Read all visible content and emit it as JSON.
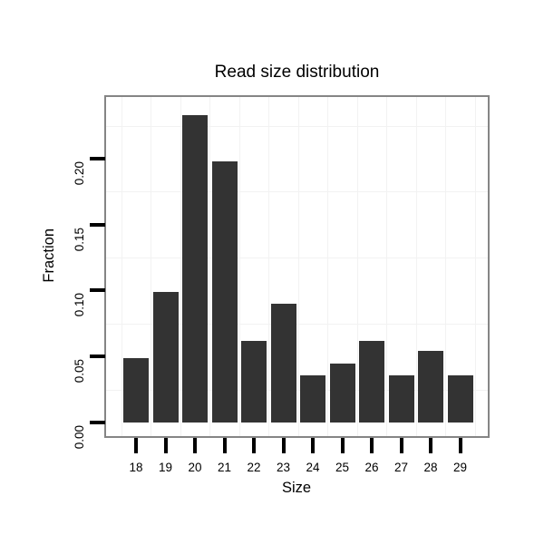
{
  "figure": {
    "background_color": "#ffffff"
  },
  "chart_data": {
    "type": "bar",
    "title": "Read size distribution",
    "xlabel": "Size",
    "ylabel": "Fraction",
    "categories": [
      "18",
      "19",
      "20",
      "21",
      "22",
      "23",
      "24",
      "25",
      "26",
      "27",
      "28",
      "29"
    ],
    "values": [
      0.049,
      0.099,
      0.233,
      0.198,
      0.062,
      0.09,
      0.036,
      0.045,
      0.062,
      0.036,
      0.054,
      0.036
    ],
    "y_ticks": [
      0,
      0.05,
      0.1,
      0.15,
      0.2
    ],
    "y_tick_labels": [
      "0.00",
      "0.05",
      "0.10",
      "0.15",
      "0.20"
    ],
    "y_minor_gridlines": [
      0.025,
      0.075,
      0.125,
      0.175,
      0.225
    ],
    "ylim": [
      -0.0103,
      0.2467
    ],
    "grid": "minor gridlines only",
    "legend_position": "none",
    "bar_color": "#333333",
    "grid_color": "#f2f2f2",
    "panel_border_color": "#858585",
    "tick_color": "#000000",
    "text_color": "#000000"
  }
}
